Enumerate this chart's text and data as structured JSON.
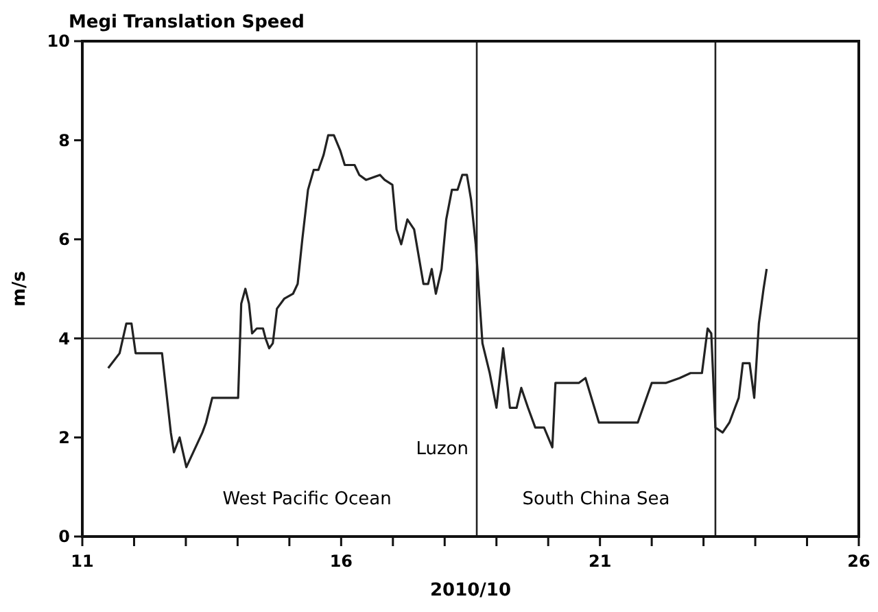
{
  "chart_data": {
    "type": "line",
    "title": "Megi Translation Speed",
    "xlabel": "2010/10",
    "ylabel": "m/s",
    "xlim": [
      11,
      26
    ],
    "ylim": [
      0,
      10
    ],
    "xticks": [
      11,
      {
        "value": 12,
        "label": null
      },
      {
        "value": 13,
        "label": null
      },
      {
        "value": 14,
        "label": null
      },
      {
        "value": 15,
        "label": null
      },
      16,
      {
        "value": 17,
        "label": null
      },
      {
        "value": 18,
        "label": null
      },
      {
        "value": 19,
        "label": null
      },
      {
        "value": 20,
        "label": null
      },
      21,
      {
        "value": 22,
        "label": null
      },
      {
        "value": 23,
        "label": null
      },
      {
        "value": 24,
        "label": null
      },
      {
        "value": 25,
        "label": null
      },
      26
    ],
    "yticks": [
      0,
      2,
      4,
      6,
      8,
      10
    ],
    "grid": false,
    "marker": "none",
    "line_style": "solid",
    "series": [
      {
        "color": "#222222",
        "x": [
          11.5,
          11.72,
          11.85,
          11.95,
          12.03,
          12.47,
          12.54,
          12.71,
          12.77,
          12.88,
          13.01,
          13.32,
          13.39,
          13.51,
          13.92,
          14.01,
          14.07,
          14.15,
          14.22,
          14.28,
          14.37,
          14.49,
          14.54,
          14.61,
          14.68,
          14.76,
          14.9,
          15.07,
          15.16,
          15.25,
          15.36,
          15.47,
          15.56,
          15.66,
          15.75,
          15.86,
          15.98,
          16.07,
          16.17,
          16.26,
          16.35,
          16.48,
          16.75,
          16.84,
          16.99,
          17.07,
          17.16,
          17.28,
          17.41,
          17.59,
          17.68,
          17.75,
          17.83,
          17.94,
          18.03,
          18.14,
          18.2,
          18.25,
          18.34,
          18.43,
          18.51,
          18.6,
          18.73,
          18.87,
          19.0,
          19.13,
          19.22,
          19.26,
          19.39,
          19.48,
          19.61,
          19.75,
          19.92,
          20.08,
          20.14,
          20.59,
          20.72,
          20.98,
          21.73,
          22.0,
          22.27,
          22.54,
          22.75,
          22.97,
          23.08,
          23.15,
          23.23,
          23.37,
          23.5,
          23.68,
          23.76,
          23.89,
          23.98,
          24.07,
          24.16,
          24.22
        ],
        "values": [
          3.4,
          3.7,
          4.3,
          4.3,
          3.7,
          3.7,
          3.7,
          2.1,
          1.7,
          2.0,
          1.4,
          2.1,
          2.3,
          2.8,
          2.8,
          2.8,
          4.7,
          5.0,
          4.7,
          4.1,
          4.2,
          4.2,
          4.0,
          3.8,
          3.9,
          4.6,
          4.8,
          4.9,
          5.1,
          6.0,
          7.0,
          7.4,
          7.4,
          7.7,
          8.1,
          8.1,
          7.8,
          7.5,
          7.5,
          7.5,
          7.3,
          7.2,
          7.3,
          7.2,
          7.1,
          6.2,
          5.9,
          6.4,
          6.2,
          5.1,
          5.1,
          5.4,
          4.9,
          5.4,
          6.4,
          7.0,
          7.0,
          7.0,
          7.3,
          7.3,
          6.8,
          5.9,
          3.9,
          3.3,
          2.6,
          3.8,
          3.0,
          2.6,
          2.6,
          3.0,
          2.6,
          2.2,
          2.2,
          1.8,
          3.1,
          3.1,
          3.2,
          2.3,
          2.3,
          3.1,
          3.1,
          3.2,
          3.3,
          3.3,
          4.2,
          4.1,
          2.2,
          2.1,
          2.3,
          2.8,
          3.5,
          3.5,
          2.8,
          4.3,
          5.0,
          5.4
        ]
      }
    ],
    "ref_lines": [
      {
        "axis": "y",
        "value": 4,
        "color": "#444444"
      },
      {
        "axis": "x",
        "value": 18.62,
        "color": "#222222",
        "label": "Luzon"
      },
      {
        "axis": "x",
        "value": 23.23,
        "color": "#222222"
      }
    ],
    "annotations": [
      "West Pacific Ocean",
      "South China Sea"
    ]
  }
}
